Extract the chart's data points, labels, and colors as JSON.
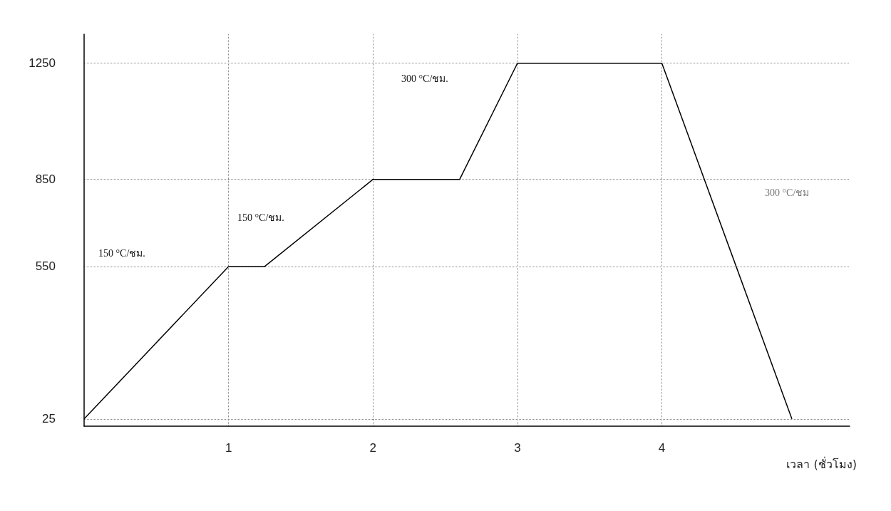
{
  "chart_data": {
    "type": "line",
    "xlabel": "เวลา (ชั่วโมง)",
    "x": [
      0,
      1,
      1.25,
      2,
      2.6,
      3,
      4,
      4.9
    ],
    "series": [
      {
        "color": "#000000",
        "values": [
          25,
          550,
          550,
          850,
          850,
          1250,
          1250,
          25
        ]
      }
    ],
    "xlim": [
      0,
      5.3
    ],
    "xticks": [
      1,
      2,
      3,
      4
    ],
    "ylim": [
      0,
      1350
    ],
    "yticks": [
      25,
      550,
      850,
      1250
    ],
    "grid": true,
    "marker": "none",
    "line_style": "solid",
    "annotations": [
      "150 °C/ชม.",
      "150 °C/ชม.",
      "300 °C/ชม.",
      "300 °C/ชม"
    ]
  }
}
